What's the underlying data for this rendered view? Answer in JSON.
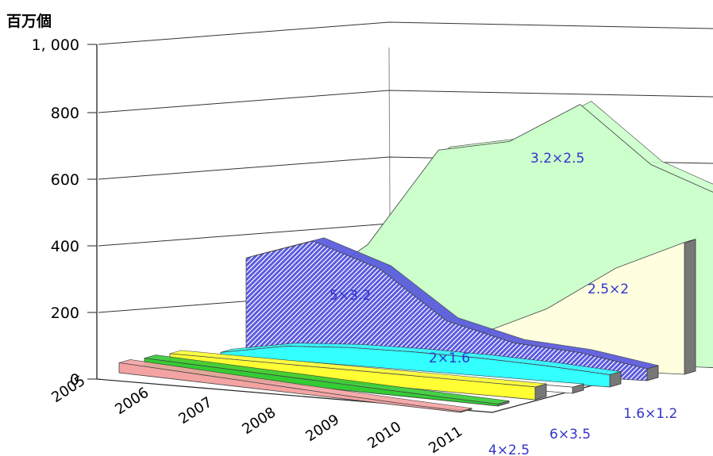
{
  "chart_data": {
    "type": "area",
    "projection": "3d-depth",
    "ylabel": "百万個",
    "ylim": [
      0,
      1000
    ],
    "y_ticks": [
      "0",
      "200",
      "400",
      "600",
      "800",
      "1, 000"
    ],
    "categories": [
      "2005",
      "2006",
      "2007",
      "2008",
      "2009",
      "2010",
      "2011"
    ],
    "depth_labels": [
      "4×2.5",
      "6×3.5",
      "1.6×1.2"
    ],
    "series": [
      {
        "name": "4×2.5",
        "color": "#f4a3a3",
        "values": [
          30,
          25,
          20,
          15,
          10,
          6,
          3
        ]
      },
      {
        "name": "6×3.5",
        "color": "#33cc33",
        "values": [
          35,
          30,
          25,
          20,
          15,
          10,
          6
        ]
      },
      {
        "name": "",
        "color": "#ffff33",
        "values": [
          40,
          40,
          40,
          40,
          40,
          40,
          40
        ]
      },
      {
        "name": "",
        "color": "#ffffff",
        "values": [
          20,
          20,
          20,
          20,
          20,
          20,
          20
        ]
      },
      {
        "name": "2×1.6",
        "color": "#33ffff",
        "values": [
          25,
          60,
          70,
          70,
          65,
          55,
          40
        ]
      },
      {
        "name": "5×3.2",
        "color": "#5555dd",
        "values": [
          330,
          400,
          320,
          160,
          100,
          80,
          40
        ]
      },
      {
        "name": "2.5×2",
        "color": "#ffffe0",
        "values": [
          0,
          0,
          60,
          100,
          200,
          350,
          450
        ]
      },
      {
        "name": "3.2×2.5",
        "color": "#ccffcc",
        "values": [
          200,
          380,
          720,
          760,
          900,
          700,
          600
        ]
      }
    ]
  }
}
